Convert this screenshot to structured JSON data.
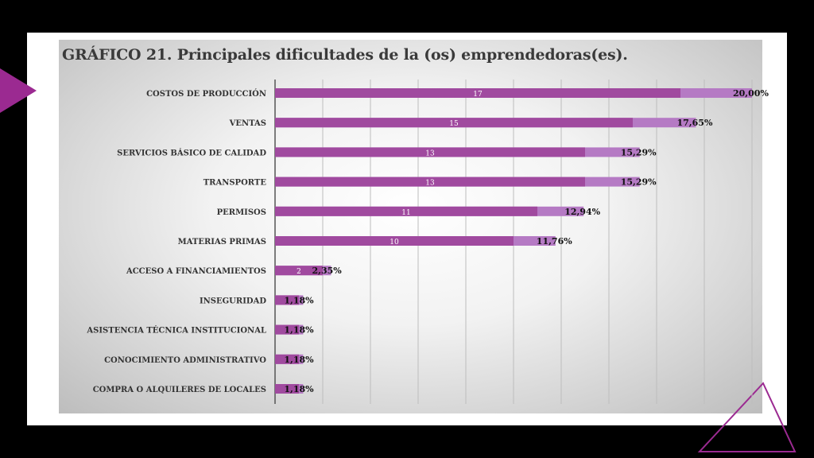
{
  "chart_data": {
    "type": "bar",
    "orientation": "horizontal",
    "title": "GRÁFICO 21. Principales dificultades de la (os) emprendedoras(es).",
    "categories": [
      "COSTOS DE PRODUCCIÓN",
      "VENTAS",
      "SERVICIOS BÁSICO DE CALIDAD",
      "TRANSPORTE",
      "PERMISOS",
      "MATERIAS PRIMAS",
      "ACCESO A FINANCIAMIENTOS",
      "INSEGURIDAD",
      "ASISTENCIA TÉCNICA INSTITUCIONAL",
      "CONOCIMIENTO ADMINISTRATIVO",
      "COMPRA O ALQUILERES DE LOCALES"
    ],
    "series": [
      {
        "values": [
          17,
          15,
          13,
          13,
          11,
          10,
          2,
          1,
          1,
          1,
          1
        ],
        "value_labels": [
          "17",
          "15",
          "13",
          "13",
          "11",
          "10",
          "2",
          "",
          "",
          "",
          ""
        ]
      },
      {
        "values": [
          20.0,
          17.65,
          15.29,
          15.29,
          12.94,
          11.76,
          2.35,
          1.18,
          1.18,
          1.18,
          1.18
        ],
        "value_labels": [
          "20,00%",
          "17,65%",
          "15,29%",
          "15,29%",
          "12,94%",
          "11,76%",
          "2,35%",
          "1,18%",
          "1,18%",
          "1,18%",
          "1,18%"
        ]
      }
    ],
    "xlim": [
      0,
      20
    ],
    "grid": true,
    "legend": "none",
    "colors": {
      "bar_count": "#a04a9f",
      "bar_percent": "#b57ac4",
      "accent": "#9b2a91"
    }
  }
}
